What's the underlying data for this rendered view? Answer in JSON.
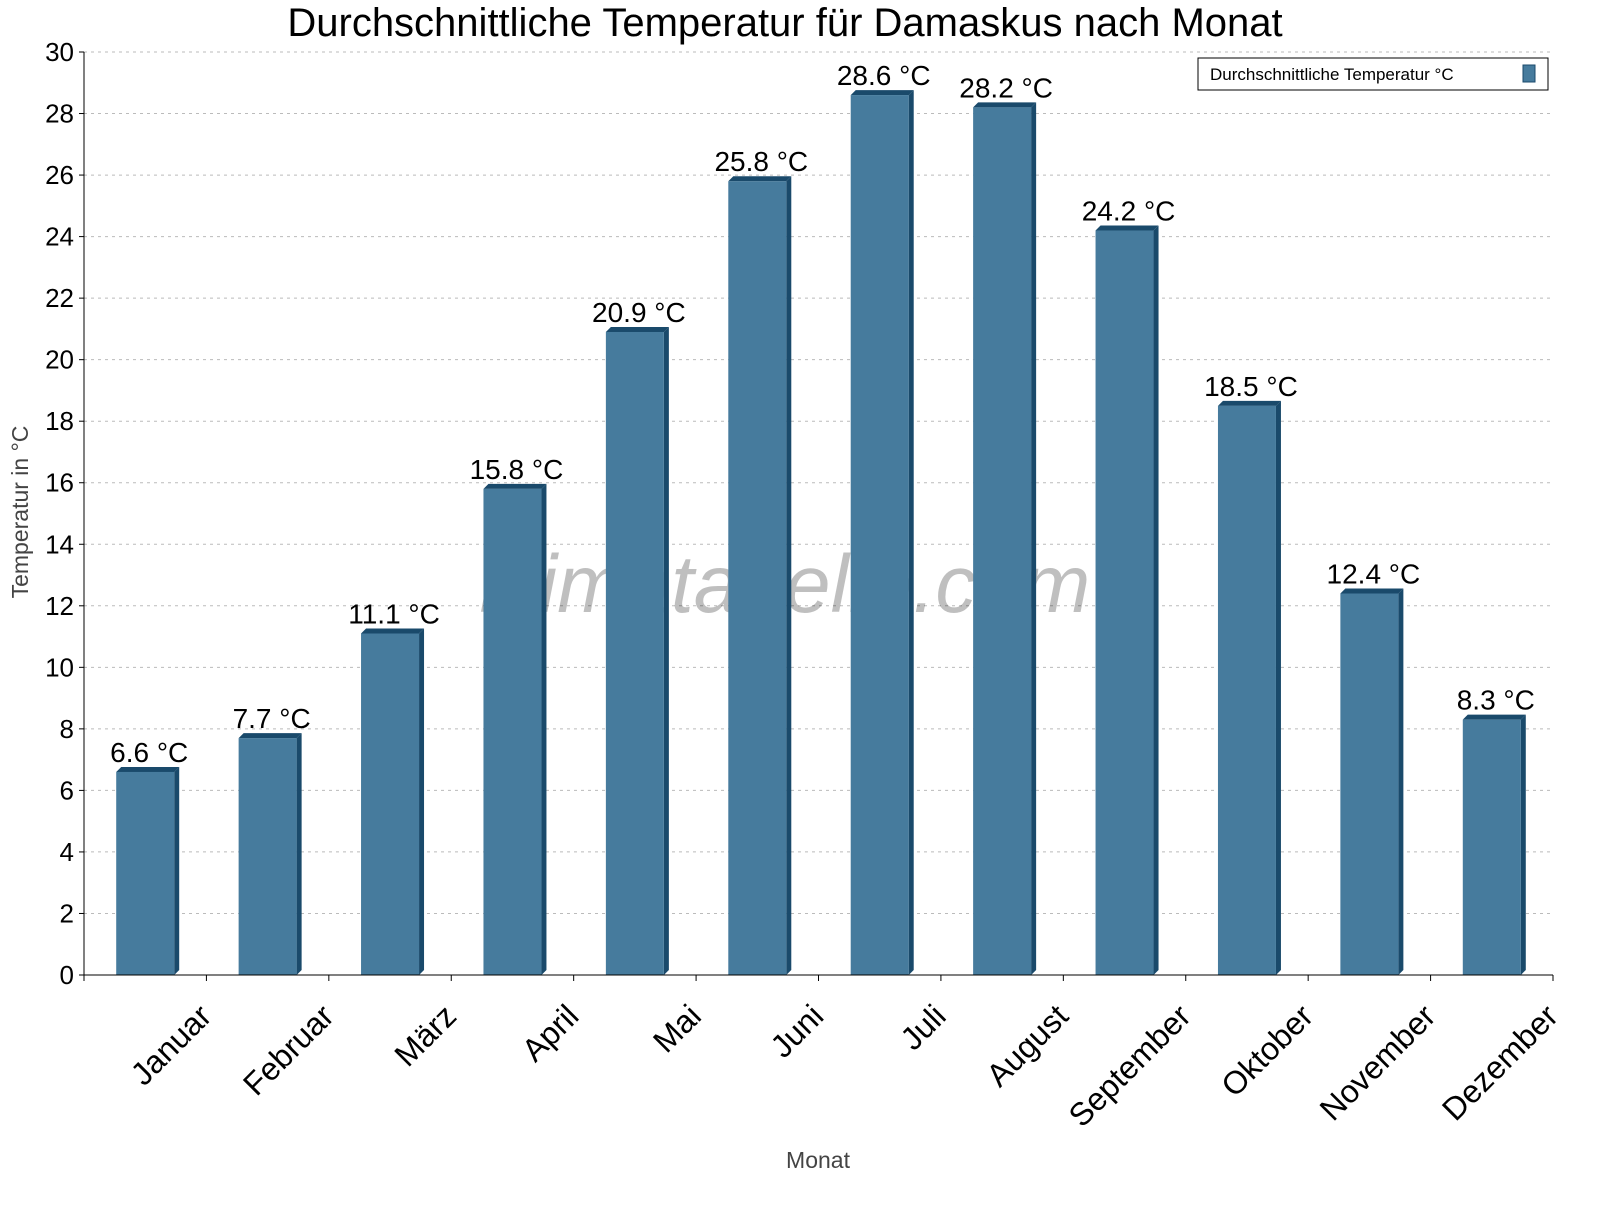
{
  "chart_data": {
    "type": "bar",
    "title": "Durchschnittliche Temperatur für Damaskus nach Monat",
    "xlabel": "Monat",
    "ylabel": "Temperatur in °C",
    "ylim": [
      0,
      30
    ],
    "yticks": [
      0,
      2,
      4,
      6,
      8,
      10,
      12,
      14,
      16,
      18,
      20,
      22,
      24,
      26,
      28,
      30
    ],
    "grid": true,
    "legend_position": "top-right",
    "categories": [
      "Januar",
      "Februar",
      "März",
      "April",
      "Mai",
      "Juni",
      "Juli",
      "August",
      "September",
      "Oktober",
      "November",
      "Dezember"
    ],
    "series": [
      {
        "name": "Durchschnittliche Temperatur °C",
        "values": [
          6.6,
          7.7,
          11.1,
          15.8,
          20.9,
          25.8,
          28.6,
          28.2,
          24.2,
          18.5,
          12.4,
          8.3
        ],
        "data_labels": [
          "6.6 °C",
          "7.7 °C",
          "11.1 °C",
          "15.8 °C",
          "20.9 °C",
          "25.8 °C",
          "28.6 °C",
          "28.2 °C",
          "24.2 °C",
          "18.5 °C",
          "12.4 °C",
          "8.3 °C"
        ]
      }
    ],
    "colors": {
      "bar": "#467b9d",
      "bar_side": "#1a4a6b"
    }
  },
  "watermark": "klimatabelle.com"
}
